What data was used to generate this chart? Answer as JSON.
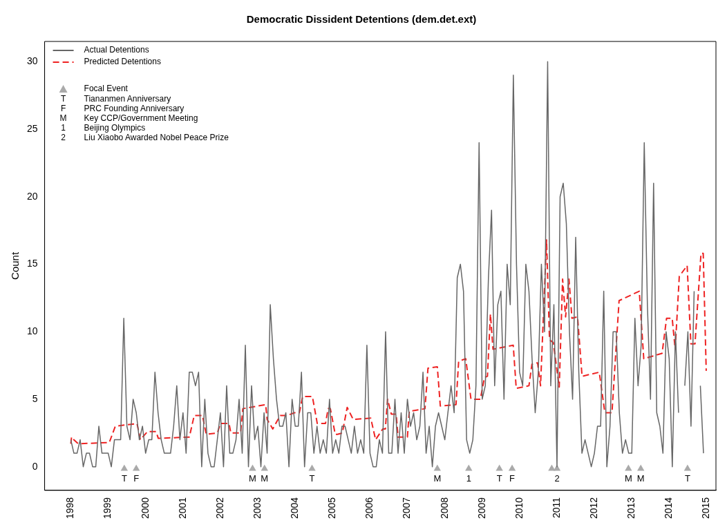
{
  "chart_data": {
    "type": "line",
    "title": "Democratic Dissident Detentions (dem.det.ext)",
    "ylabel": "Count",
    "legend": "top left",
    "xlim": [
      1997.3,
      2015.25
    ],
    "ylim": [
      -1.75,
      31.5
    ],
    "xticks": [
      1998,
      1999,
      2000,
      2001,
      2002,
      2003,
      2004,
      2005,
      2006,
      2007,
      2008,
      2009,
      2010,
      2011,
      2012,
      2013,
      2014,
      2015
    ],
    "yticks": [
      0,
      5,
      10,
      15,
      20,
      25,
      30
    ],
    "x": [
      1998,
      1998.083,
      1998.167,
      1998.25,
      1998.333,
      1998.417,
      1998.5,
      1998.583,
      1998.667,
      1998.75,
      1998.833,
      1998.917,
      1999,
      1999.083,
      1999.167,
      1999.25,
      1999.333,
      1999.417,
      1999.5,
      1999.583,
      1999.667,
      1999.75,
      1999.833,
      1999.917,
      2000,
      2000.083,
      2000.167,
      2000.25,
      2000.333,
      2000.417,
      2000.5,
      2000.583,
      2000.667,
      2000.75,
      2000.833,
      2000.917,
      2001,
      2001.083,
      2001.167,
      2001.25,
      2001.333,
      2001.417,
      2001.5,
      2001.583,
      2001.667,
      2001.75,
      2001.833,
      2001.917,
      2002,
      2002.083,
      2002.167,
      2002.25,
      2002.333,
      2002.417,
      2002.5,
      2002.583,
      2002.667,
      2002.75,
      2002.833,
      2002.917,
      2003,
      2003.083,
      2003.167,
      2003.25,
      2003.333,
      2003.417,
      2003.5,
      2003.583,
      2003.667,
      2003.75,
      2003.833,
      2003.917,
      2004,
      2004.083,
      2004.167,
      2004.25,
      2004.333,
      2004.417,
      2004.5,
      2004.583,
      2004.667,
      2004.75,
      2004.833,
      2004.917,
      2005,
      2005.083,
      2005.167,
      2005.25,
      2005.333,
      2005.417,
      2005.5,
      2005.583,
      2005.667,
      2005.75,
      2005.833,
      2005.917,
      2006,
      2006.083,
      2006.167,
      2006.25,
      2006.333,
      2006.417,
      2006.5,
      2006.583,
      2006.667,
      2006.75,
      2006.833,
      2006.917,
      2007,
      2007.083,
      2007.167,
      2007.25,
      2007.333,
      2007.417,
      2007.5,
      2007.583,
      2007.667,
      2007.75,
      2007.833,
      2007.917,
      2008,
      2008.083,
      2008.167,
      2008.25,
      2008.333,
      2008.417,
      2008.5,
      2008.583,
      2008.667,
      2008.75,
      2008.833,
      2008.917,
      2009,
      2009.083,
      2009.167,
      2009.25,
      2009.333,
      2009.417,
      2009.5,
      2009.583,
      2009.667,
      2009.75,
      2009.833,
      2009.917,
      2010,
      2010.083,
      2010.167,
      2010.25,
      2010.333,
      2010.417,
      2010.5,
      2010.583,
      2010.667,
      2010.75,
      2010.833,
      2010.917,
      2011,
      2011.083,
      2011.167,
      2011.25,
      2011.333,
      2011.417,
      2011.5,
      2011.583,
      2011.667,
      2011.75,
      2011.833,
      2011.917,
      2012,
      2012.083,
      2012.167,
      2012.25,
      2012.333,
      2012.417,
      2012.5,
      2012.583,
      2012.667,
      2012.75,
      2012.833,
      2012.917,
      2013,
      2013.083,
      2013.167,
      2013.25,
      2013.333,
      2013.417,
      2013.5,
      2013.583,
      2013.667,
      2013.75,
      2013.833,
      2013.917,
      2014,
      2014.083,
      2014.167,
      2014.25,
      2014.333,
      2014.417,
      2014.5,
      2014.583,
      2014.667,
      2014.75,
      2014.833,
      2014.917
    ],
    "series": [
      {
        "name": "Actual Detentions",
        "color": "#666666",
        "line_style": "solid",
        "values": [
          2,
          1,
          1,
          2,
          0,
          1,
          1,
          0,
          0,
          3,
          1,
          1,
          1,
          0,
          2,
          2,
          2,
          11,
          3,
          2,
          5,
          4,
          2,
          3,
          1,
          2,
          2,
          7,
          4,
          2,
          1,
          1,
          1,
          3,
          6,
          2,
          4,
          1,
          7,
          7,
          6,
          7,
          0,
          5,
          1,
          0,
          0,
          2,
          4,
          0,
          6,
          1,
          1,
          2,
          5,
          1,
          9,
          0,
          6,
          2,
          3,
          0,
          4,
          1,
          12,
          8,
          5,
          3,
          3,
          4,
          0,
          5,
          3,
          3,
          7,
          0,
          4,
          4,
          1,
          3,
          1,
          2,
          1,
          5,
          1,
          2,
          1,
          3,
          3,
          2,
          1,
          3,
          1,
          2,
          1,
          9,
          1,
          0,
          0,
          2,
          1,
          10,
          1,
          1,
          5,
          1,
          4,
          1,
          5,
          3,
          4,
          2,
          3,
          7,
          1,
          3,
          0,
          3,
          4,
          3,
          2,
          4,
          6,
          4,
          14,
          15,
          13,
          2,
          1,
          2,
          6,
          24,
          5,
          6,
          14,
          19,
          6,
          12,
          13,
          5,
          15,
          12,
          29,
          15,
          7,
          6,
          15,
          13,
          8,
          4,
          7,
          15,
          10,
          30,
          6,
          12,
          0,
          20,
          21,
          18,
          10,
          5,
          17,
          7,
          1,
          2,
          1,
          0,
          1,
          3,
          3,
          13,
          0,
          3,
          10,
          10,
          4,
          1,
          2,
          1,
          1,
          11,
          6,
          9,
          24,
          12,
          5,
          21,
          4,
          3,
          1,
          10,
          8,
          0,
          10,
          4,
          null,
          6,
          10,
          3,
          13,
          null,
          6,
          1
        ]
      },
      {
        "name": "Predicted Detentions",
        "color": "#ee2222",
        "line_style": "dashed",
        "x": [
          1998,
          1998.02,
          1998.08,
          1998.2,
          1999.03,
          1999.19,
          1999.77,
          1999.86,
          2000.05,
          2000.28,
          2000.34,
          2001.17,
          2001.3,
          2001.52,
          2001.62,
          2001.92,
          2002,
          2002.23,
          2002.28,
          2002.54,
          2002.6,
          2003.21,
          2003.25,
          2003.4,
          2003.6,
          2003.79,
          2003.98,
          2004.11,
          2004.2,
          2004.46,
          2004.59,
          2004.81,
          2004.88,
          2004.94,
          2005.07,
          2005.13,
          2005.26,
          2005.39,
          2005.55,
          2006.02,
          2006.15,
          2006.34,
          2006.41,
          2006.47,
          2006.57,
          2006.7,
          2006.75,
          2007,
          2007.05,
          2007.47,
          2007.55,
          2007.8,
          2007.88,
          2008.3,
          2008.37,
          2008.56,
          2008.7,
          2008.95,
          2009.06,
          2009.14,
          2009.22,
          2009.29,
          2009.83,
          2009.91,
          2010.25,
          2010.33,
          2010.48,
          2010.56,
          2010.72,
          2010.8,
          2010.9,
          2011.06,
          2011.15,
          2011.23,
          2011.32,
          2011.4,
          2011.55,
          2011.67,
          2012.13,
          2012.28,
          2012.47,
          2012.66,
          2013.2,
          2013.32,
          2013.81,
          2013.93,
          2014.08,
          2014.16,
          2014.27,
          2014.48,
          2014.58,
          2014.69,
          2014.85,
          2014.91,
          2014.99
        ],
        "values": [
          1.7,
          2.2,
          2,
          1.7,
          1.8,
          3,
          3.2,
          2,
          2.6,
          2.6,
          2.1,
          2.2,
          3.8,
          3.8,
          2.4,
          2.5,
          3.2,
          3.2,
          2.5,
          2.5,
          4.3,
          4.6,
          3.5,
          2.8,
          3.8,
          3.8,
          4,
          4,
          5.2,
          5.2,
          3.2,
          3.2,
          4.3,
          4.3,
          2.4,
          2.4,
          2.5,
          4.4,
          3.5,
          3.6,
          2,
          2.8,
          2.8,
          5,
          3.9,
          3.9,
          2.2,
          2.2,
          4.1,
          4.3,
          7.3,
          7.4,
          4.5,
          4.6,
          7.8,
          8,
          5,
          5,
          6.6,
          6.7,
          11.3,
          8.7,
          9,
          5.8,
          6,
          7.6,
          7.7,
          6,
          16.8,
          9.4,
          9.2,
          5.9,
          13.9,
          11.1,
          13.9,
          11,
          11.1,
          6.7,
          7,
          4,
          4,
          12.3,
          13,
          8,
          8.4,
          11,
          11,
          8.7,
          14.1,
          14.9,
          9.1,
          9.1,
          15.8,
          15.8,
          7.1
        ]
      },
      {
        "name": "Focal Event",
        "type": "scatter",
        "marker": "triangle",
        "color": "#aaaaaa",
        "x": [
          1999.43,
          1999.75,
          2002.86,
          2003.18,
          2004.45,
          2007.8,
          2008.64,
          2009.46,
          2009.8,
          2010.86,
          2011,
          2012.91,
          2013.24,
          2014.49
        ],
        "values": [
          -0.15,
          -0.15,
          -0.15,
          -0.15,
          -0.15,
          -0.15,
          -0.15,
          -0.15,
          -0.15,
          -0.15,
          -0.15,
          -0.15,
          -0.15,
          -0.15
        ]
      }
    ],
    "annotations": [
      "T Tiananmen Anniversary",
      "F PRC Founding Anniversary",
      "M Key CCP/Government Meeting",
      "1 Beijing Olympics",
      "2 Liu Xiaobo Awarded Nobel Peace Prize",
      {
        "text": "T",
        "x": 1999.43,
        "y": -0.15
      },
      {
        "text": "F",
        "x": 1999.75,
        "y": -0.15
      },
      {
        "text": "M",
        "x": 2002.86,
        "y": -0.15
      },
      {
        "text": "M",
        "x": 2003.18,
        "y": -0.15
      },
      {
        "text": "T",
        "x": 2004.45,
        "y": -0.15
      },
      {
        "text": "M",
        "x": 2007.8,
        "y": -0.15
      },
      {
        "text": "1",
        "x": 2008.64,
        "y": -0.15
      },
      {
        "text": "T",
        "x": 2009.46,
        "y": -0.15
      },
      {
        "text": "F",
        "x": 2009.8,
        "y": -0.15
      },
      {
        "text": "2",
        "x": 2011,
        "y": -0.15
      },
      {
        "text": "M",
        "x": 2012.91,
        "y": -0.15
      },
      {
        "text": "M",
        "x": 2013.24,
        "y": -0.15
      },
      {
        "text": "T",
        "x": 2014.49,
        "y": -0.15
      }
    ]
  }
}
